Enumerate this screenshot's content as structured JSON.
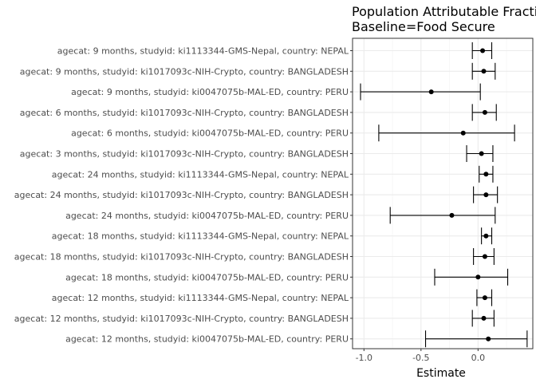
{
  "chart_data": {
    "type": "scatter",
    "title_lines": [
      "Population Attributable Fraction",
      "Baseline=Food Secure"
    ],
    "xlabel": "Estimate",
    "ylabel": "",
    "xlim": [
      -1.1,
      0.48
    ],
    "x_ticks": [
      {
        "value": -1.0,
        "label": "-1.0"
      },
      {
        "value": -0.5,
        "label": "-0.5"
      },
      {
        "value": 0.0,
        "label": "0.0"
      }
    ],
    "grid": true,
    "categories": [
      "agecat: 9 months, studyid: ki1113344-GMS-Nepal, country: NEPAL",
      "agecat: 9 months, studyid: ki1017093c-NIH-Crypto, country: BANGLADESH",
      "agecat: 9 months, studyid: ki0047075b-MAL-ED, country: PERU",
      "agecat: 6 months, studyid: ki1017093c-NIH-Crypto, country: BANGLADESH",
      "agecat: 6 months, studyid: ki0047075b-MAL-ED, country: PERU",
      "agecat: 3 months, studyid: ki1017093c-NIH-Crypto, country: BANGLADESH",
      "agecat: 24 months, studyid: ki1113344-GMS-Nepal, country: NEPAL",
      "agecat: 24 months, studyid: ki1017093c-NIH-Crypto, country: BANGLADESH",
      "agecat: 24 months, studyid: ki0047075b-MAL-ED, country: PERU",
      "agecat: 18 months, studyid: ki1113344-GMS-Nepal, country: NEPAL",
      "agecat: 18 months, studyid: ki1017093c-NIH-Crypto, country: BANGLADESH",
      "agecat: 18 months, studyid: ki0047075b-MAL-ED, country: PERU",
      "agecat: 12 months, studyid: ki1113344-GMS-Nepal, country: NEPAL",
      "agecat: 12 months, studyid: ki1017093c-NIH-Crypto, country: BANGLADESH",
      "agecat: 12 months, studyid: ki0047075b-MAL-ED, country: PERU"
    ],
    "series": [
      {
        "estimate": [
          0.04,
          0.05,
          -0.41,
          0.06,
          -0.13,
          0.03,
          0.07,
          0.07,
          -0.23,
          0.07,
          0.06,
          0.0,
          0.06,
          0.05,
          0.09
        ],
        "lower": [
          -0.05,
          -0.05,
          -1.03,
          -0.05,
          -0.87,
          -0.1,
          0.01,
          -0.04,
          -0.77,
          0.03,
          -0.04,
          -0.38,
          -0.01,
          -0.05,
          -0.46
        ],
        "upper": [
          0.12,
          0.15,
          0.02,
          0.16,
          0.32,
          0.13,
          0.13,
          0.17,
          0.15,
          0.12,
          0.14,
          0.26,
          0.12,
          0.14,
          0.43
        ]
      }
    ]
  }
}
